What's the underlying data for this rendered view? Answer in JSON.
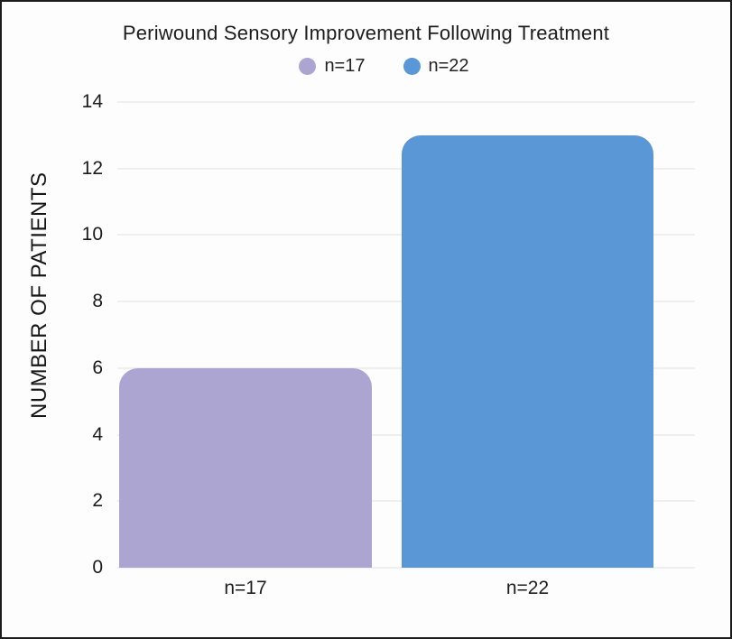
{
  "title": "Periwound Sensory Improvement Following Treatment",
  "legend": {
    "items": [
      {
        "label": "n=17",
        "color": "#aca5d2"
      },
      {
        "label": "n=22",
        "color": "#5997d6"
      }
    ]
  },
  "chart_data": {
    "type": "bar",
    "title": "Periwound Sensory Improvement Following Treatment",
    "categories": [
      "n=17",
      "n=22"
    ],
    "values": [
      6,
      13
    ],
    "series_colors": [
      "#aca5d2",
      "#5997d6"
    ],
    "xlabel": "",
    "ylabel": "NUMBER OF PATIENTS",
    "ylim": [
      0,
      14
    ],
    "yticks": [
      0,
      2,
      4,
      6,
      8,
      10,
      12,
      14
    ],
    "grid": true,
    "legend_position": "top",
    "legend_labels": [
      "n=17",
      "n=22"
    ]
  }
}
